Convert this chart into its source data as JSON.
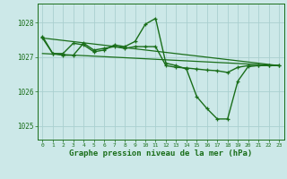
{
  "background_color": "#cce8e8",
  "grid_color": "#aacfcf",
  "line_color": "#1a6e1a",
  "marker_color": "#1a6e1a",
  "xlabel": "Graphe pression niveau de la mer (hPa)",
  "xlabel_fontsize": 6.5,
  "ylabel_ticks": [
    1025,
    1026,
    1027,
    1028
  ],
  "xlim": [
    -0.5,
    23.5
  ],
  "ylim": [
    1024.6,
    1028.55
  ],
  "xticks": [
    0,
    1,
    2,
    3,
    4,
    5,
    6,
    7,
    8,
    9,
    10,
    11,
    12,
    13,
    14,
    15,
    16,
    17,
    18,
    19,
    20,
    21,
    22,
    23
  ],
  "series": [
    {
      "x": [
        0,
        23
      ],
      "y": [
        1027.55,
        1026.75
      ],
      "marker": false,
      "linewidth": 0.9
    },
    {
      "x": [
        0,
        23
      ],
      "y": [
        1027.1,
        1026.75
      ],
      "marker": false,
      "linewidth": 0.9
    },
    {
      "x": [
        0,
        1,
        2,
        3,
        4,
        5,
        6,
        7,
        8,
        9,
        10,
        11,
        12,
        13,
        14,
        15,
        16,
        17,
        18,
        19,
        20,
        21,
        22,
        23
      ],
      "y": [
        1027.55,
        1027.1,
        1027.1,
        1027.4,
        1027.35,
        1027.15,
        1027.2,
        1027.35,
        1027.3,
        1027.45,
        1027.95,
        1028.12,
        1026.82,
        1026.75,
        1026.65,
        1025.85,
        1025.5,
        1025.2,
        1025.2,
        1026.3,
        1026.72,
        1026.75,
        1026.75,
        1026.75
      ],
      "marker": true,
      "linewidth": 1.0
    },
    {
      "x": [
        0,
        1,
        2,
        3,
        4,
        5,
        6,
        7,
        8,
        9,
        10,
        11,
        12,
        13,
        14,
        15,
        16,
        17,
        18,
        19,
        20,
        21,
        22,
        23
      ],
      "y": [
        1027.6,
        1027.1,
        1027.05,
        1027.05,
        1027.4,
        1027.2,
        1027.25,
        1027.3,
        1027.25,
        1027.3,
        1027.3,
        1027.3,
        1026.75,
        1026.7,
        1026.68,
        1026.65,
        1026.62,
        1026.6,
        1026.55,
        1026.7,
        1026.75,
        1026.75,
        1026.75,
        1026.75
      ],
      "marker": true,
      "linewidth": 1.0
    }
  ]
}
